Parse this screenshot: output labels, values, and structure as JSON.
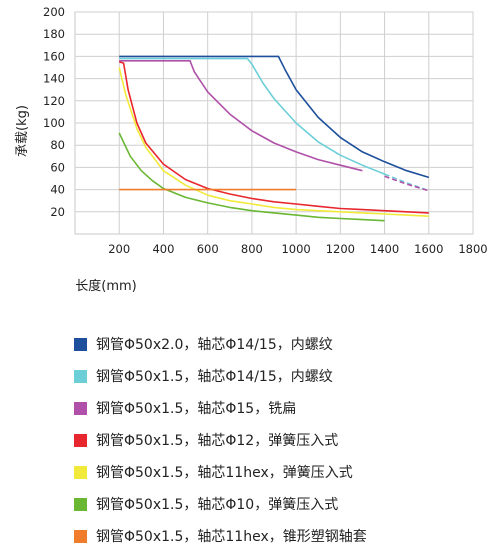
{
  "chart_data": {
    "type": "line",
    "xlabel": "长度(mm)",
    "ylabel": "承载(kg)",
    "xlim": [
      0,
      1800
    ],
    "ylim": [
      0,
      200
    ],
    "x_ticks": [
      200,
      400,
      600,
      800,
      1000,
      1200,
      1400,
      1600,
      1800
    ],
    "y_ticks": [
      20,
      40,
      60,
      80,
      100,
      120,
      140,
      160,
      180,
      200
    ],
    "grid": true,
    "legend_position": "bottom",
    "series": [
      {
        "name": "钢管Φ50x2.0，轴芯Φ14/15，内螺纹",
        "color": "#1d4f9c",
        "points": [
          [
            200,
            160
          ],
          [
            300,
            160
          ],
          [
            400,
            160
          ],
          [
            500,
            160
          ],
          [
            600,
            160
          ],
          [
            700,
            160
          ],
          [
            800,
            160
          ],
          [
            900,
            160
          ],
          [
            920,
            160
          ],
          [
            950,
            148
          ],
          [
            1000,
            130
          ],
          [
            1100,
            105
          ],
          [
            1200,
            87
          ],
          [
            1300,
            74
          ],
          [
            1400,
            65
          ],
          [
            1500,
            57
          ],
          [
            1600,
            51
          ]
        ]
      },
      {
        "name": "钢管Φ50x1.5，轴芯Φ14/15，内螺纹",
        "color": "#6ccfd8",
        "dashed_from": 1400,
        "points": [
          [
            200,
            158
          ],
          [
            300,
            158
          ],
          [
            400,
            158
          ],
          [
            500,
            158
          ],
          [
            600,
            158
          ],
          [
            700,
            158
          ],
          [
            780,
            158
          ],
          [
            800,
            153
          ],
          [
            850,
            136
          ],
          [
            900,
            122
          ],
          [
            1000,
            100
          ],
          [
            1100,
            83
          ],
          [
            1200,
            71
          ],
          [
            1300,
            62
          ],
          [
            1400,
            54
          ],
          [
            1500,
            46
          ],
          [
            1600,
            39
          ]
        ]
      },
      {
        "name": "钢管Φ50x1.5，轴芯Φ15，铣扁",
        "color": "#b050a8",
        "dashed_from": 1380,
        "points": [
          [
            200,
            156
          ],
          [
            300,
            156
          ],
          [
            400,
            156
          ],
          [
            500,
            156
          ],
          [
            520,
            156
          ],
          [
            540,
            146
          ],
          [
            600,
            128
          ],
          [
            700,
            108
          ],
          [
            800,
            93
          ],
          [
            900,
            82
          ],
          [
            1000,
            74
          ],
          [
            1100,
            67
          ],
          [
            1200,
            62
          ],
          [
            1300,
            57
          ],
          [
            1400,
            52
          ],
          [
            1500,
            45
          ],
          [
            1600,
            39
          ]
        ]
      },
      {
        "name": "钢管Φ50x1.5，轴芯Φ12，弹簧压入式",
        "color": "#e8262d",
        "points": [
          [
            200,
            155
          ],
          [
            220,
            154
          ],
          [
            240,
            130
          ],
          [
            280,
            100
          ],
          [
            320,
            82
          ],
          [
            400,
            63
          ],
          [
            500,
            49
          ],
          [
            600,
            41
          ],
          [
            700,
            36
          ],
          [
            800,
            32
          ],
          [
            900,
            29
          ],
          [
            1000,
            27
          ],
          [
            1100,
            25
          ],
          [
            1200,
            23
          ],
          [
            1300,
            22
          ],
          [
            1400,
            21
          ],
          [
            1500,
            20
          ],
          [
            1600,
            19
          ]
        ]
      },
      {
        "name": "钢管Φ50x1.5，轴芯11hex，弹簧压入式",
        "color": "#f2ea3a",
        "points": [
          [
            200,
            150
          ],
          [
            230,
            125
          ],
          [
            280,
            95
          ],
          [
            320,
            78
          ],
          [
            400,
            57
          ],
          [
            500,
            44
          ],
          [
            600,
            35
          ],
          [
            700,
            30
          ],
          [
            800,
            27
          ],
          [
            900,
            24
          ],
          [
            1000,
            22
          ],
          [
            1100,
            21
          ],
          [
            1200,
            20
          ],
          [
            1300,
            19
          ],
          [
            1400,
            18
          ],
          [
            1500,
            17
          ],
          [
            1600,
            16
          ]
        ]
      },
      {
        "name": "钢管Φ50x1.5，轴芯Φ10，弹簧压入式",
        "color": "#69b733",
        "points": [
          [
            200,
            91
          ],
          [
            250,
            70
          ],
          [
            300,
            57
          ],
          [
            350,
            48
          ],
          [
            400,
            41
          ],
          [
            500,
            33
          ],
          [
            600,
            28
          ],
          [
            700,
            24
          ],
          [
            800,
            21
          ],
          [
            900,
            19
          ],
          [
            1000,
            17
          ],
          [
            1100,
            15
          ],
          [
            1200,
            14
          ],
          [
            1300,
            13
          ],
          [
            1400,
            12
          ]
        ]
      },
      {
        "name": "钢管Φ50x1.5，轴芯11hex，锥形塑钢轴套",
        "color": "#ef7d2c",
        "points": [
          [
            200,
            40
          ],
          [
            1000,
            40
          ]
        ]
      }
    ]
  }
}
